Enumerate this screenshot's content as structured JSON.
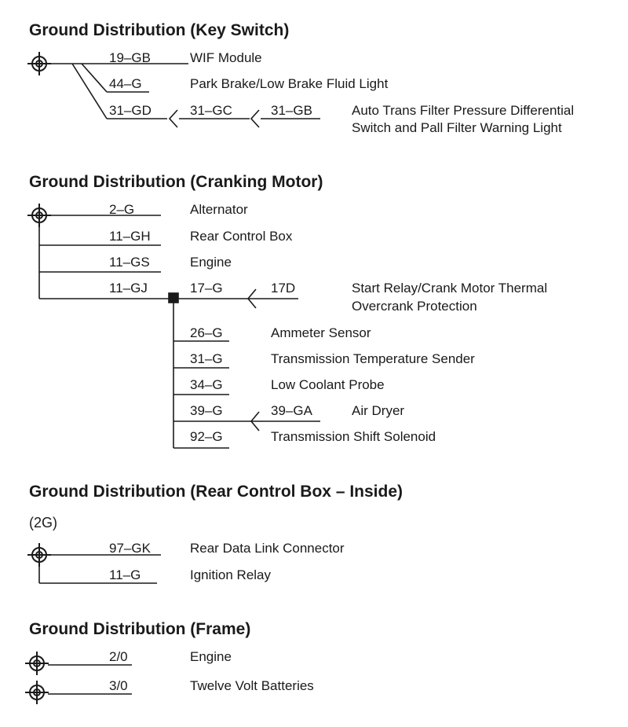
{
  "key_switch": {
    "title": "Ground Distribution (Key Switch)",
    "circuits": [
      {
        "wire": "19–GB",
        "device": "WIF Module"
      },
      {
        "wire": "44–G",
        "device": "Park Brake/Low Brake Fluid Light"
      },
      {
        "wire": "31–GD",
        "wire2": "31–GC",
        "wire3": "31–GB",
        "device_line1": "Auto Trans Filter Pressure Differential",
        "device_line2": "Switch and Pall Filter Warning Light"
      }
    ]
  },
  "cranking_motor": {
    "title": "Ground Distribution (Cranking Motor)",
    "circuits": [
      {
        "wire": "2–G",
        "device": "Alternator"
      },
      {
        "wire": "11–GH",
        "device": "Rear Control Box"
      },
      {
        "wire": "11–GS",
        "device": "Engine"
      },
      {
        "wire": "11–GJ",
        "wire2": "17–G",
        "wire3": "17D",
        "device_line1": "Start Relay/Crank Motor Thermal",
        "device_line2": "Overcrank Protection"
      }
    ],
    "splice_circuits": [
      {
        "wire": "26–G",
        "device": "Ammeter Sensor"
      },
      {
        "wire": "31–G",
        "device": "Transmission Temperature Sender"
      },
      {
        "wire": "34–G",
        "device": "Low Coolant Probe"
      },
      {
        "wire": "39–G",
        "wire2": "39–GA",
        "device": "Air Dryer"
      },
      {
        "wire": "92–G",
        "device": "Transmission Shift Solenoid"
      }
    ]
  },
  "rear_control_box": {
    "title": "Ground Distribution (Rear Control Box – Inside)",
    "subtitle": "(2G)",
    "circuits": [
      {
        "wire": "97–GK",
        "device": "Rear Data Link Connector"
      },
      {
        "wire": "11–G",
        "device": "Ignition Relay"
      }
    ]
  },
  "frame": {
    "title": "Ground Distribution (Frame)",
    "circuits": [
      {
        "wire": "2/0",
        "device": "Engine"
      },
      {
        "wire": "3/0",
        "device": "Twelve Volt Batteries"
      }
    ]
  }
}
